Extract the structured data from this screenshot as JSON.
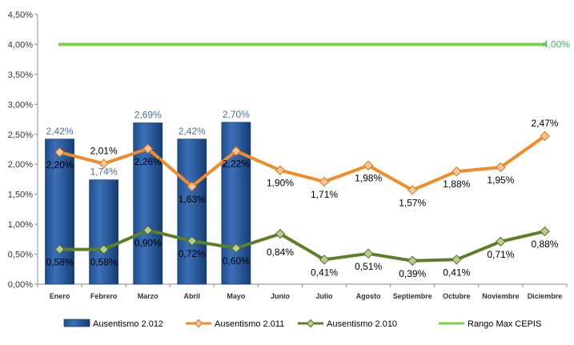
{
  "chart_data": {
    "type": "bar",
    "categories": [
      "Enero",
      "Febrero",
      "Marzo",
      "Abril",
      "Mayo",
      "Junio",
      "Julio",
      "Agosto",
      "Septiembre",
      "Octubre",
      "Noviembre",
      "Diciembre"
    ],
    "ylim": [
      0,
      4.5
    ],
    "yticks": [
      "0,00%",
      "0,50%",
      "1,00%",
      "1,50%",
      "2,00%",
      "2,50%",
      "3,00%",
      "3,50%",
      "4,00%",
      "4,50%"
    ],
    "grid": false,
    "legend_position": "bottom",
    "series": [
      {
        "name": "Ausentismo 2.012",
        "kind": "bar",
        "color": "#2f5f9e",
        "label_color": "#4a6fa5",
        "values": [
          2.42,
          1.74,
          2.69,
          2.42,
          2.7,
          null,
          null,
          null,
          null,
          null,
          null,
          null
        ],
        "labels": [
          "2,42%",
          "1,74%",
          "2,69%",
          "2,42%",
          "2,70%",
          "",
          "",
          "",
          "",
          "",
          "",
          ""
        ]
      },
      {
        "name": "Ausentismo 2.011",
        "kind": "line",
        "color": "#f28c28",
        "values": [
          2.2,
          2.01,
          2.26,
          1.63,
          2.22,
          1.9,
          1.71,
          1.98,
          1.57,
          1.88,
          1.95,
          2.47
        ],
        "labels": [
          "2,20%",
          "2,01%",
          "2,26%",
          "1,63%",
          "2,22%",
          "1,90%",
          "1,71%",
          "1,98%",
          "1,57%",
          "1,88%",
          "1,95%",
          "2,47%"
        ]
      },
      {
        "name": "Ausentismo 2.010",
        "kind": "line",
        "color": "#5e7f2a",
        "values": [
          0.58,
          0.58,
          0.9,
          0.72,
          0.6,
          0.84,
          0.41,
          0.51,
          0.39,
          0.41,
          0.71,
          0.88
        ],
        "labels": [
          "0,58%",
          "0,58%",
          "0,90%",
          "0,72%",
          "0,60%",
          "0,84%",
          "0,41%",
          "0,51%",
          "0,39%",
          "0,41%",
          "0,71%",
          "0,88%"
        ]
      },
      {
        "name": "Rango Max CEPIS",
        "kind": "line",
        "color": "#7ed04b",
        "values": [
          4.0,
          4.0,
          4.0,
          4.0,
          4.0,
          4.0,
          4.0,
          4.0,
          4.0,
          4.0,
          4.0,
          4.0
        ],
        "end_label": "4,00%"
      }
    ]
  }
}
